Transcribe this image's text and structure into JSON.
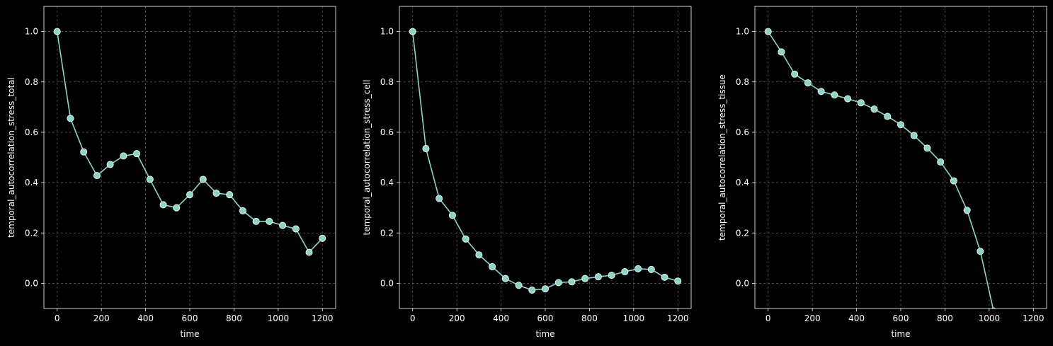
{
  "chart_data": [
    {
      "type": "line",
      "xlabel": "time",
      "ylabel": "temporal_autocorrelation_stress_total",
      "xlim": [
        -60,
        1260
      ],
      "ylim": [
        -0.1,
        1.1
      ],
      "xticks": [
        0,
        200,
        400,
        600,
        800,
        1000,
        1200
      ],
      "yticks": [
        0.0,
        0.2,
        0.4,
        0.6,
        0.8,
        1.0
      ],
      "grid": true,
      "x": [
        0,
        60,
        120,
        180,
        240,
        300,
        360,
        420,
        480,
        540,
        600,
        660,
        720,
        780,
        840,
        900,
        960,
        1020,
        1080,
        1140,
        1200
      ],
      "y": [
        1.0,
        0.655,
        0.522,
        0.428,
        0.472,
        0.506,
        0.515,
        0.413,
        0.312,
        0.3,
        0.352,
        0.413,
        0.358,
        0.352,
        0.288,
        0.246,
        0.246,
        0.23,
        0.216,
        0.123,
        0.179
      ]
    },
    {
      "type": "line",
      "xlabel": "time",
      "ylabel": "temporal_autocorrelation_stress_cell",
      "xlim": [
        -60,
        1260
      ],
      "ylim": [
        -0.1,
        1.1
      ],
      "xticks": [
        0,
        200,
        400,
        600,
        800,
        1000,
        1200
      ],
      "yticks": [
        0.0,
        0.2,
        0.4,
        0.6,
        0.8,
        1.0
      ],
      "grid": true,
      "x": [
        0,
        60,
        120,
        180,
        240,
        300,
        360,
        420,
        480,
        540,
        600,
        660,
        720,
        780,
        840,
        900,
        960,
        1020,
        1080,
        1140,
        1200
      ],
      "y": [
        1.0,
        0.535,
        0.337,
        0.27,
        0.176,
        0.113,
        0.066,
        0.019,
        -0.008,
        -0.027,
        -0.022,
        0.003,
        0.006,
        0.019,
        0.026,
        0.032,
        0.046,
        0.058,
        0.055,
        0.024,
        0.009
      ]
    },
    {
      "type": "line",
      "xlabel": "time",
      "ylabel": "temporal_autocorrelation_stress_tissue",
      "xlim": [
        -60,
        1260
      ],
      "ylim": [
        -0.1,
        1.1
      ],
      "xticks": [
        0,
        200,
        400,
        600,
        800,
        1000,
        1200
      ],
      "yticks": [
        0.0,
        0.2,
        0.4,
        0.6,
        0.8,
        1.0
      ],
      "grid": true,
      "x": [
        0,
        60,
        120,
        180,
        240,
        300,
        360,
        420,
        480,
        540,
        600,
        660,
        720,
        780,
        840,
        900,
        960,
        1020
      ],
      "y": [
        1.0,
        0.919,
        0.831,
        0.796,
        0.762,
        0.748,
        0.733,
        0.717,
        0.692,
        0.663,
        0.63,
        0.587,
        0.537,
        0.482,
        0.407,
        0.29,
        0.127,
        -0.11
      ]
    }
  ],
  "style": {
    "background": "#000000",
    "axis_color": "#ffffff",
    "grid_color": "#5a5a5a",
    "line_color": "#8dd3c7",
    "marker_fill": "#8dd3c7",
    "marker_edge": "#ffffff"
  }
}
